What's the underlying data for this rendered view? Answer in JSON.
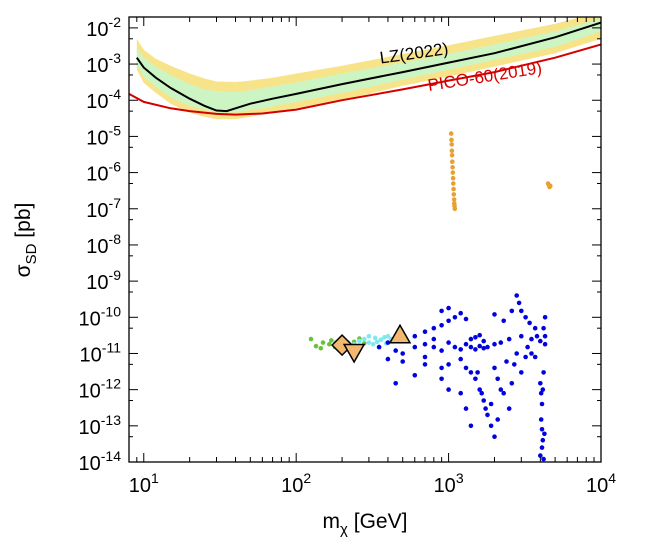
{
  "chart_data": {
    "type": "scatter",
    "xlabel": {
      "base": "m",
      "sub": "χ",
      "unit": " [GeV]"
    },
    "ylabel": {
      "base": "σ",
      "sub": "SD",
      "unit": " [pb]"
    },
    "x_scale": "log",
    "y_scale": "log",
    "xlim": [
      8,
      10000
    ],
    "ylim": [
      1e-14,
      0.02
    ],
    "x_ticks": [
      {
        "value": 10,
        "base": "10",
        "exp": "1"
      },
      {
        "value": 100,
        "base": "10",
        "exp": "2"
      },
      {
        "value": 1000,
        "base": "10",
        "exp": "3"
      },
      {
        "value": 10000,
        "base": "10",
        "exp": "4"
      }
    ],
    "y_ticks": [
      {
        "value": 0.01,
        "base": "10",
        "exp": "-2"
      },
      {
        "value": 0.001,
        "base": "10",
        "exp": "-3"
      },
      {
        "value": 0.0001,
        "base": "10",
        "exp": "-4"
      },
      {
        "value": 1e-05,
        "base": "10",
        "exp": "-5"
      },
      {
        "value": 1e-06,
        "base": "10",
        "exp": "-6"
      },
      {
        "value": 1e-07,
        "base": "10",
        "exp": "-7"
      },
      {
        "value": 1e-08,
        "base": "10",
        "exp": "-8"
      },
      {
        "value": 1e-09,
        "base": "10",
        "exp": "-9"
      },
      {
        "value": 1e-10,
        "base": "10",
        "exp": "-10"
      },
      {
        "value": 1e-11,
        "base": "10",
        "exp": "-11"
      },
      {
        "value": 1e-12,
        "base": "10",
        "exp": "-12"
      },
      {
        "value": 1e-13,
        "base": "10",
        "exp": "-13"
      },
      {
        "value": 1e-14,
        "base": "10",
        "exp": "-14"
      }
    ],
    "grid": false,
    "colors": {
      "lz": "#000000",
      "pico": "#d40000",
      "band_2sigma": "#f7e48a",
      "band_1sigma": "#cdf5c4",
      "orange_points": "#e8a030",
      "blue_points": "#0000e0",
      "cyan_points": "#7fe8f0",
      "green_points": "#6cc040",
      "benchmark_fill": "#f2b870"
    },
    "curves": [
      {
        "label": "LZ(2022)",
        "color": "#000000",
        "x": [
          9,
          10,
          12,
          15,
          20,
          25,
          30,
          35,
          40,
          50,
          70,
          100,
          200,
          500,
          1000,
          2000,
          5000,
          10000
        ],
        "y": [
          0.0015,
          0.0008,
          0.00042,
          0.00022,
          0.00011,
          7e-05,
          5.2e-05,
          5e-05,
          6e-05,
          8e-05,
          0.00011,
          0.00015,
          0.00028,
          0.0006,
          0.0011,
          0.002,
          0.0055,
          0.014
        ]
      },
      {
        "label": "PICO-60(2019)",
        "color": "#d40000",
        "x": [
          8,
          10,
          15,
          20,
          30,
          40,
          60,
          100,
          200,
          500,
          1000,
          2000,
          5000,
          10000
        ],
        "y": [
          0.00015,
          9e-05,
          6e-05,
          5e-05,
          4.2e-05,
          4e-05,
          4.3e-05,
          5.5e-05,
          0.0001,
          0.0002,
          0.00035,
          0.0006,
          0.0015,
          0.0035
        ]
      }
    ],
    "bands": [
      {
        "name": "2sigma",
        "x": [
          9,
          10,
          12,
          15,
          20,
          25,
          30,
          40,
          50,
          70,
          100,
          200,
          500,
          1000,
          2000,
          5000,
          10000
        ],
        "lower": [
          0.0007,
          0.0003,
          0.00016,
          8e-05,
          4.5e-05,
          3.5e-05,
          3e-05,
          3e-05,
          3.5e-05,
          4.5e-05,
          6e-05,
          0.0001,
          0.00025,
          0.00045,
          0.00085,
          0.002,
          0.005
        ],
        "upper": [
          0.005,
          0.0025,
          0.0014,
          0.0009,
          0.00055,
          0.0004,
          0.00033,
          0.00032,
          0.00035,
          0.00042,
          0.00055,
          0.0009,
          0.0019,
          0.0033,
          0.006,
          0.013,
          0.028
        ]
      },
      {
        "name": "1sigma",
        "x": [
          9,
          10,
          12,
          15,
          20,
          25,
          30,
          40,
          50,
          70,
          100,
          200,
          500,
          1000,
          2000,
          5000,
          10000
        ],
        "lower": [
          0.001,
          0.00045,
          0.00024,
          0.00012,
          7e-05,
          5.5e-05,
          4.5e-05,
          4.6e-05,
          5.3e-05,
          6.7e-05,
          9e-05,
          0.00016,
          0.00037,
          0.0007,
          0.0013,
          0.003,
          0.008
        ],
        "upper": [
          0.0028,
          0.0015,
          0.00085,
          0.0005,
          0.00028,
          0.0002,
          0.00018,
          0.00017,
          0.00019,
          0.00024,
          0.00031,
          0.00055,
          0.0011,
          0.0019,
          0.0035,
          0.008,
          0.018
        ]
      }
    ],
    "scatter_groups": [
      {
        "name": "orange",
        "color": "#e8a030",
        "points": [
          [
            1040,
            1.2e-05
          ],
          [
            1045,
            8e-06
          ],
          [
            1048,
            6e-06
          ],
          [
            1052,
            4e-06
          ],
          [
            1055,
            3e-06
          ],
          [
            1058,
            2e-06
          ],
          [
            1062,
            1.4e-06
          ],
          [
            1066,
            1e-06
          ],
          [
            1070,
            7e-07
          ],
          [
            1074,
            5e-07
          ],
          [
            1078,
            3.5e-07
          ],
          [
            1082,
            2.5e-07
          ],
          [
            1086,
            1.8e-07
          ],
          [
            1090,
            1.4e-07
          ],
          [
            1094,
            1.2e-07
          ],
          [
            1098,
            1e-07
          ],
          [
            4500,
            5e-07
          ],
          [
            4550,
            4.5e-07
          ],
          [
            4600,
            4e-07
          ],
          [
            4650,
            4.3e-07
          ]
        ]
      },
      {
        "name": "blue",
        "color": "#0000e0",
        "points": [
          [
            350,
            1.5e-11
          ],
          [
            400,
            2e-11
          ],
          [
            450,
            1.2e-11
          ],
          [
            500,
            1e-11
          ],
          [
            600,
            1.5e-11
          ],
          [
            700,
            1.8e-11
          ],
          [
            800,
            1.5e-11
          ],
          [
            900,
            1.2e-11
          ],
          [
            1000,
            2e-11
          ],
          [
            1100,
            1.5e-11
          ],
          [
            1200,
            1.3e-11
          ],
          [
            1300,
            1.8e-11
          ],
          [
            1400,
            1.5e-11
          ],
          [
            1500,
            1.3e-11
          ],
          [
            1600,
            1.6e-11
          ],
          [
            1700,
            1.4e-11
          ],
          [
            1800,
            1.5e-11
          ],
          [
            2000,
            1.8e-11
          ],
          [
            2200,
            2e-11
          ],
          [
            2500,
            2.5e-11
          ],
          [
            3000,
            3e-11
          ],
          [
            3500,
            2.5e-11
          ],
          [
            4000,
            2.2e-11
          ],
          [
            4300,
            1.8e-11
          ],
          [
            600,
            3e-11
          ],
          [
            700,
            4e-11
          ],
          [
            800,
            5e-11
          ],
          [
            900,
            6e-11
          ],
          [
            1000,
            8e-11
          ],
          [
            1100,
            1e-10
          ],
          [
            1200,
            1.3e-10
          ],
          [
            1300,
            9e-11
          ],
          [
            900,
            1.5e-10
          ],
          [
            1000,
            1.8e-10
          ],
          [
            2000,
            1.2e-10
          ],
          [
            2300,
            8e-11
          ],
          [
            2600,
            1.5e-10
          ],
          [
            2800,
            4e-10
          ],
          [
            2900,
            2.5e-10
          ],
          [
            3000,
            1.5e-10
          ],
          [
            3200,
            1e-10
          ],
          [
            3400,
            7e-11
          ],
          [
            3700,
            5e-11
          ],
          [
            4200,
            5e-11
          ],
          [
            4300,
            1e-10
          ],
          [
            500,
            6e-12
          ],
          [
            700,
            5e-12
          ],
          [
            900,
            4e-12
          ],
          [
            1000,
            5e-12
          ],
          [
            1200,
            7e-12
          ],
          [
            1300,
            4e-12
          ],
          [
            1400,
            3e-12
          ],
          [
            1500,
            2e-12
          ],
          [
            1600,
            1e-12
          ],
          [
            1700,
            5e-13
          ],
          [
            1800,
            2e-13
          ],
          [
            1900,
            1e-13
          ],
          [
            2000,
            5e-14
          ],
          [
            1550,
            3e-12
          ],
          [
            1650,
            8e-13
          ],
          [
            1750,
            3e-13
          ],
          [
            2100,
            1.5e-13
          ],
          [
            2300,
            8e-13
          ],
          [
            2500,
            3e-13
          ],
          [
            2700,
            5e-12
          ],
          [
            3000,
            3e-12
          ],
          [
            1200,
            8e-13
          ],
          [
            1300,
            3e-13
          ],
          [
            1400,
            1e-13
          ],
          [
            900,
            2e-12
          ],
          [
            1000,
            1e-12
          ],
          [
            3500,
            1e-11
          ],
          [
            3700,
            8e-12
          ],
          [
            4000,
            1.5e-12
          ],
          [
            4050,
            8e-13
          ],
          [
            4100,
            4e-13
          ],
          [
            4050,
            1.5e-13
          ],
          [
            4100,
            8e-14
          ],
          [
            4150,
            4e-14
          ],
          [
            4000,
            1.5e-14
          ],
          [
            4100,
            2.5e-14
          ],
          [
            4200,
            1.2e-14
          ],
          [
            4250,
            6e-14
          ],
          [
            4150,
            1e-12
          ],
          [
            4200,
            3e-12
          ],
          [
            600,
            2.5e-12
          ],
          [
            400,
            7e-12
          ],
          [
            450,
            1.5e-12
          ],
          [
            2000,
            4e-12
          ],
          [
            2100,
            2e-12
          ],
          [
            2200,
            1e-12
          ],
          [
            2400,
            6e-12
          ],
          [
            2600,
            1.5e-12
          ],
          [
            1900,
            4e-13
          ],
          [
            3300,
            1.5e-11
          ],
          [
            3800,
            3e-11
          ],
          [
            4300,
            3e-11
          ],
          [
            1400,
            2.5e-11
          ],
          [
            1500,
            2.8e-11
          ],
          [
            1600,
            3.2e-11
          ],
          [
            1700,
            2.2e-11
          ],
          [
            800,
            2.5e-11
          ],
          [
            700,
            8e-12
          ],
          [
            3200,
            8e-12
          ],
          [
            2800,
            1e-11
          ]
        ]
      },
      {
        "name": "cyan",
        "color": "#7fe8f0",
        "points": [
          [
            180,
            2e-11
          ],
          [
            200,
            2.3e-11
          ],
          [
            220,
            2e-11
          ],
          [
            240,
            1.8e-11
          ],
          [
            260,
            2.2e-11
          ],
          [
            280,
            2.5e-11
          ],
          [
            300,
            2e-11
          ],
          [
            320,
            1.8e-11
          ],
          [
            340,
            2.1e-11
          ],
          [
            360,
            2.4e-11
          ],
          [
            380,
            2.8e-11
          ],
          [
            400,
            3e-11
          ],
          [
            420,
            2.5e-11
          ],
          [
            440,
            2.2e-11
          ],
          [
            300,
            3e-11
          ],
          [
            250,
            1.5e-11
          ],
          [
            350,
            1.5e-11
          ],
          [
            200,
            1.6e-11
          ],
          [
            330,
            2.7e-11
          ],
          [
            390,
            1.9e-11
          ]
        ]
      },
      {
        "name": "green",
        "color": "#6cc040",
        "points": [
          [
            125,
            2.5e-11
          ],
          [
            135,
            1.6e-11
          ],
          [
            150,
            2e-11
          ],
          [
            165,
            1.8e-11
          ],
          [
            180,
            1.5e-11
          ],
          [
            200,
            1.3e-11
          ],
          [
            220,
            1.7e-11
          ],
          [
            240,
            2.1e-11
          ],
          [
            260,
            2.6e-11
          ],
          [
            280,
            1.9e-11
          ],
          [
            145,
            1.4e-11
          ],
          [
            170,
            2.3e-11
          ]
        ]
      }
    ],
    "benchmarks": [
      {
        "shape": "diamond",
        "x": 200,
        "y": 1.7e-11
      },
      {
        "shape": "triangle-down",
        "x": 240,
        "y": 1.1e-11
      },
      {
        "shape": "triangle-up",
        "x": 480,
        "y": 3.2e-11
      }
    ]
  }
}
